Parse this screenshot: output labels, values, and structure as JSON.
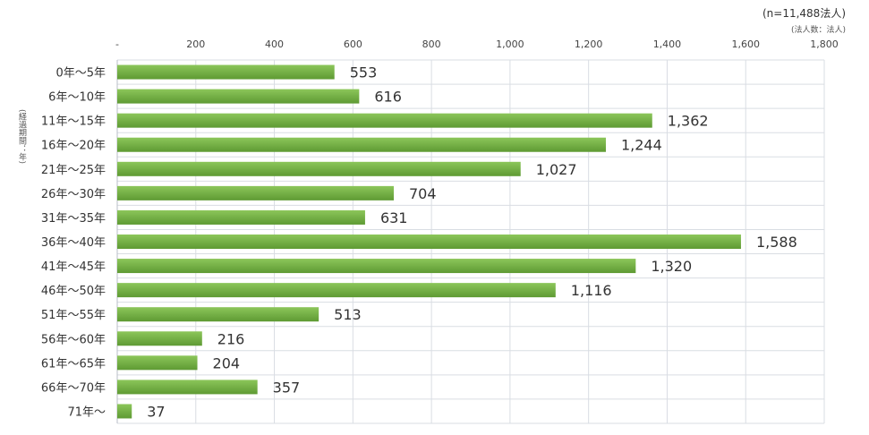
{
  "notes": {
    "sample": "(n=11,488法人)",
    "unit": "(法人数：法人)"
  },
  "chart_data": {
    "type": "bar",
    "orientation": "horizontal",
    "title": "",
    "xlabel": "",
    "ylabel": "(経過期間：年)",
    "xlim": [
      0,
      1800
    ],
    "x_ticks": [
      "-",
      "200",
      "400",
      "600",
      "800",
      "1,000",
      "1,200",
      "1,400",
      "1,600",
      "1,800"
    ],
    "x_tick_values": [
      0,
      200,
      400,
      600,
      800,
      1000,
      1200,
      1400,
      1600,
      1800
    ],
    "x_axis_position": "top",
    "grid": true,
    "bar_color": "#6fae3f",
    "categories": [
      "0年～5年",
      "6年～10年",
      "11年～15年",
      "16年～20年",
      "21年～25年",
      "26年～30年",
      "31年～35年",
      "36年～40年",
      "41年～45年",
      "46年～50年",
      "51年～55年",
      "56年～60年",
      "61年～65年",
      "66年～70年",
      "71年～"
    ],
    "values": [
      553,
      616,
      1362,
      1244,
      1027,
      704,
      631,
      1588,
      1320,
      1116,
      513,
      216,
      204,
      357,
      37
    ],
    "value_labels": [
      "553",
      "616",
      "1,362",
      "1,244",
      "1,027",
      "704",
      "631",
      "1,588",
      "1,320",
      "1,116",
      "513",
      "216",
      "204",
      "357",
      "37"
    ]
  }
}
